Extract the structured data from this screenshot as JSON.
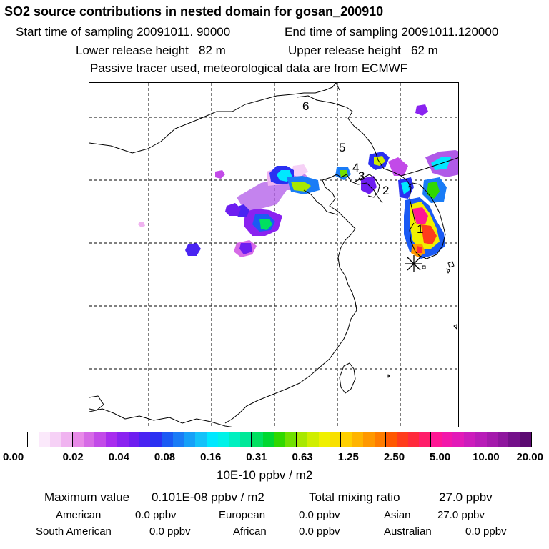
{
  "header": {
    "title": "SO2 source contributions in nested domain for gosan_200910",
    "start_time": "Start time of sampling 20091011. 90000",
    "end_time": "End time of sampling 20091011.120000",
    "lower_release": "Lower release height   82 m",
    "upper_release": "Upper release height   62 m",
    "note": "Passive tracer used, meteorological data are from ECMWF"
  },
  "map": {
    "source_labels": [
      "1",
      "2",
      "3",
      "4",
      "5",
      "6"
    ],
    "receptor_marker": "gosan-receptor-asterisk"
  },
  "colorbar": {
    "tick_labels": [
      "0.00",
      "0.02",
      "0.04",
      "0.08",
      "0.16",
      "0.31",
      "0.63",
      "1.25",
      "2.50",
      "5.00",
      "10.00",
      "20.00"
    ],
    "colors": [
      "#ffffff",
      "#fbe9fb",
      "#f6d1f6",
      "#f0b3f0",
      "#e88ae8",
      "#d66ae6",
      "#c24ae8",
      "#a82cee",
      "#8a22f0",
      "#6e1ef0",
      "#4a24f2",
      "#2a30f2",
      "#1a5af4",
      "#1a7cf6",
      "#16a0f8",
      "#14c2fa",
      "#00e8ff",
      "#00f2e8",
      "#00f0c0",
      "#00e898",
      "#00e060",
      "#00d830",
      "#30d800",
      "#70e000",
      "#a8e800",
      "#d0ee00",
      "#f0f000",
      "#f8e000",
      "#ffd000",
      "#ffb400",
      "#ff9800",
      "#ff7c00",
      "#ff5800",
      "#ff3c1c",
      "#ff2a3c",
      "#ff1e6a",
      "#ff1894",
      "#f218aa",
      "#e21ab8",
      "#cc1cbc",
      "#b81cb8",
      "#a41aac",
      "#8e169e",
      "#74108a",
      "#5c0a72"
    ],
    "unit": "10E-10 ppbv / m2"
  },
  "summary": {
    "max_label": "Maximum value",
    "max_value": "0.101E-08 ppbv / m2",
    "total_label": "Total mixing ratio",
    "total_value": "27.0 ppbv",
    "regions": [
      {
        "name": "American",
        "value": "0.0 ppbv"
      },
      {
        "name": "European",
        "value": "0.0 ppbv"
      },
      {
        "name": "Asian",
        "value": "27.0 ppbv"
      },
      {
        "name": "South American",
        "value": "0.0 ppbv"
      },
      {
        "name": "African",
        "value": "0.0 ppbv"
      },
      {
        "name": "Australian",
        "value": "0.0 ppbv"
      }
    ]
  }
}
